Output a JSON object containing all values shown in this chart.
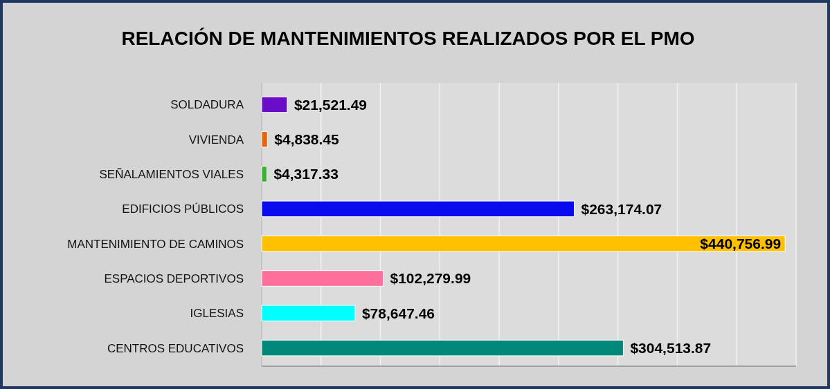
{
  "chart_data": {
    "type": "bar",
    "orientation": "horizontal",
    "title": "RELACIÓN DE MANTENIMIENTOS REALIZADOS POR EL PMO",
    "categories": [
      "SOLDADURA",
      "VIVIENDA",
      "SEÑALAMIENTOS VIALES",
      "EDIFICIOS PÚBLICOS",
      "MANTENIMIENTO DE CAMINOS",
      "ESPACIOS DEPORTIVOS",
      "IGLESIAS",
      "CENTROS EDUCATIVOS"
    ],
    "values": [
      21521.49,
      4838.45,
      4317.33,
      263174.07,
      440756.99,
      102279.99,
      78647.46,
      304513.87
    ],
    "colors": [
      "#6a0dc8",
      "#e8650c",
      "#3cb034",
      "#0a0aee",
      "#ffc000",
      "#ff6f9c",
      "#00ffff",
      "#00897b"
    ],
    "value_labels": [
      "$21,521.49",
      "$4,838.45",
      "$4,317.33",
      "$263,174.07",
      "$440,756.99",
      "$102,279.99",
      "$78,647.46",
      "$304,513.87"
    ],
    "xlim": [
      0,
      450000
    ],
    "xticks": [
      {
        "value": 0,
        "label": null
      },
      {
        "value": 50000,
        "label": null
      },
      {
        "value": 100000,
        "label": null
      },
      {
        "value": 150000,
        "label": null
      },
      {
        "value": 200000,
        "label": null
      },
      {
        "value": 250000,
        "label": null
      },
      {
        "value": 300000,
        "label": null
      },
      {
        "value": 350000,
        "label": null
      },
      {
        "value": 400000,
        "label": null
      },
      {
        "value": 450000,
        "label": null
      }
    ],
    "grid": "x"
  }
}
